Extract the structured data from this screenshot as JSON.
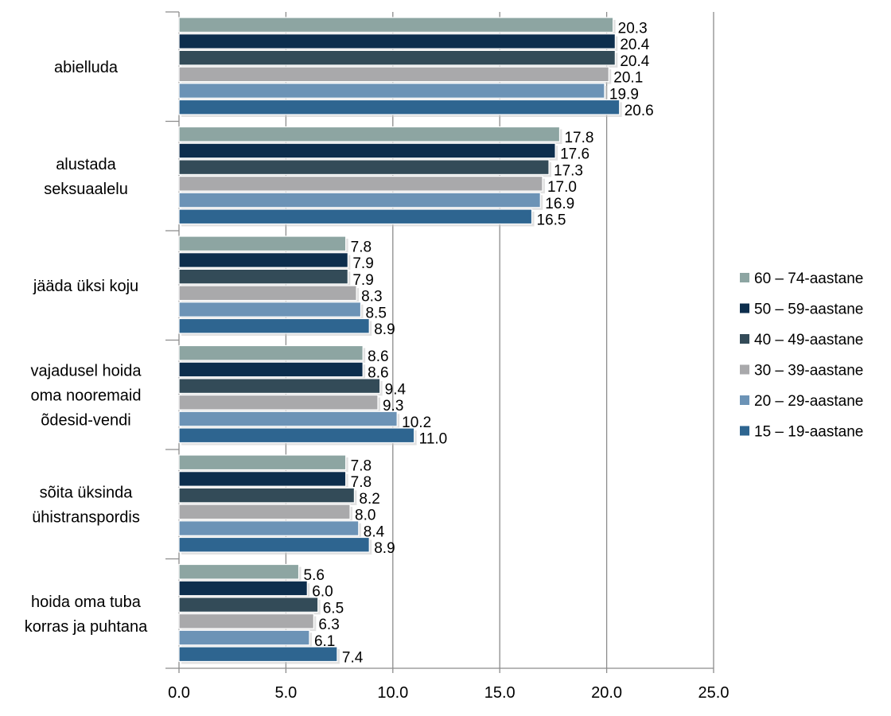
{
  "chart_data": {
    "type": "bar",
    "orientation": "horizontal",
    "title": "",
    "xlabel": "",
    "ylabel": "",
    "xlim": [
      0,
      25
    ],
    "x_ticks": [
      "0.0",
      "5.0",
      "10.0",
      "15.0",
      "20.0",
      "25.0"
    ],
    "grid": "vertical",
    "legend_position": "right",
    "categories": [
      [
        "abielluda"
      ],
      [
        "alustada",
        "seksuaalelu"
      ],
      [
        "jääda üksi koju"
      ],
      [
        "vajadusel hoida",
        "oma nooremaid",
        "õdesid-vendi"
      ],
      [
        "sõita üksinda",
        "ühistranspordis"
      ],
      [
        "hoida oma tuba",
        "korras ja puhtana"
      ]
    ],
    "series": [
      {
        "name": "60 – 74-aastane",
        "color": "#8da5a2",
        "values": [
          20.3,
          17.8,
          7.8,
          8.6,
          7.8,
          5.6
        ],
        "labels": [
          "20.3",
          "17.8",
          "7.8",
          "8.6",
          "7.8",
          "5.6"
        ]
      },
      {
        "name": "50 – 59-aastane",
        "color": "#0d2e4d",
        "values": [
          20.4,
          17.6,
          7.9,
          8.6,
          7.8,
          6.0
        ],
        "labels": [
          "20.4",
          "17.6",
          "7.9",
          "8.6",
          "7.8",
          "6.0"
        ]
      },
      {
        "name": "40 – 49-aastane",
        "color": "#334b58",
        "values": [
          20.4,
          17.3,
          7.9,
          9.4,
          8.2,
          6.5
        ],
        "labels": [
          "20.4",
          "17.3",
          "7.9",
          "9.4",
          "8.2",
          "6.5"
        ]
      },
      {
        "name": "30 – 39-aastane",
        "color": "#a9a9ab",
        "values": [
          20.1,
          17.0,
          8.3,
          9.3,
          8.0,
          6.3
        ],
        "labels": [
          "20.1",
          "17.0",
          "8.3",
          "9.3",
          "8.0",
          "6.3"
        ]
      },
      {
        "name": "20 – 29-aastane",
        "color": "#6c93b6",
        "values": [
          19.9,
          16.9,
          8.5,
          10.2,
          8.4,
          6.1
        ],
        "labels": [
          "19.9",
          "16.9",
          "8.5",
          "10.2",
          "8.4",
          "6.1"
        ]
      },
      {
        "name": "15 – 19-aastane",
        "color": "#2e6590",
        "values": [
          20.6,
          16.5,
          8.9,
          11.0,
          8.9,
          7.4
        ],
        "labels": [
          "20.6",
          "16.5",
          "8.9",
          "11.0",
          "8.9",
          "7.4"
        ]
      }
    ]
  }
}
